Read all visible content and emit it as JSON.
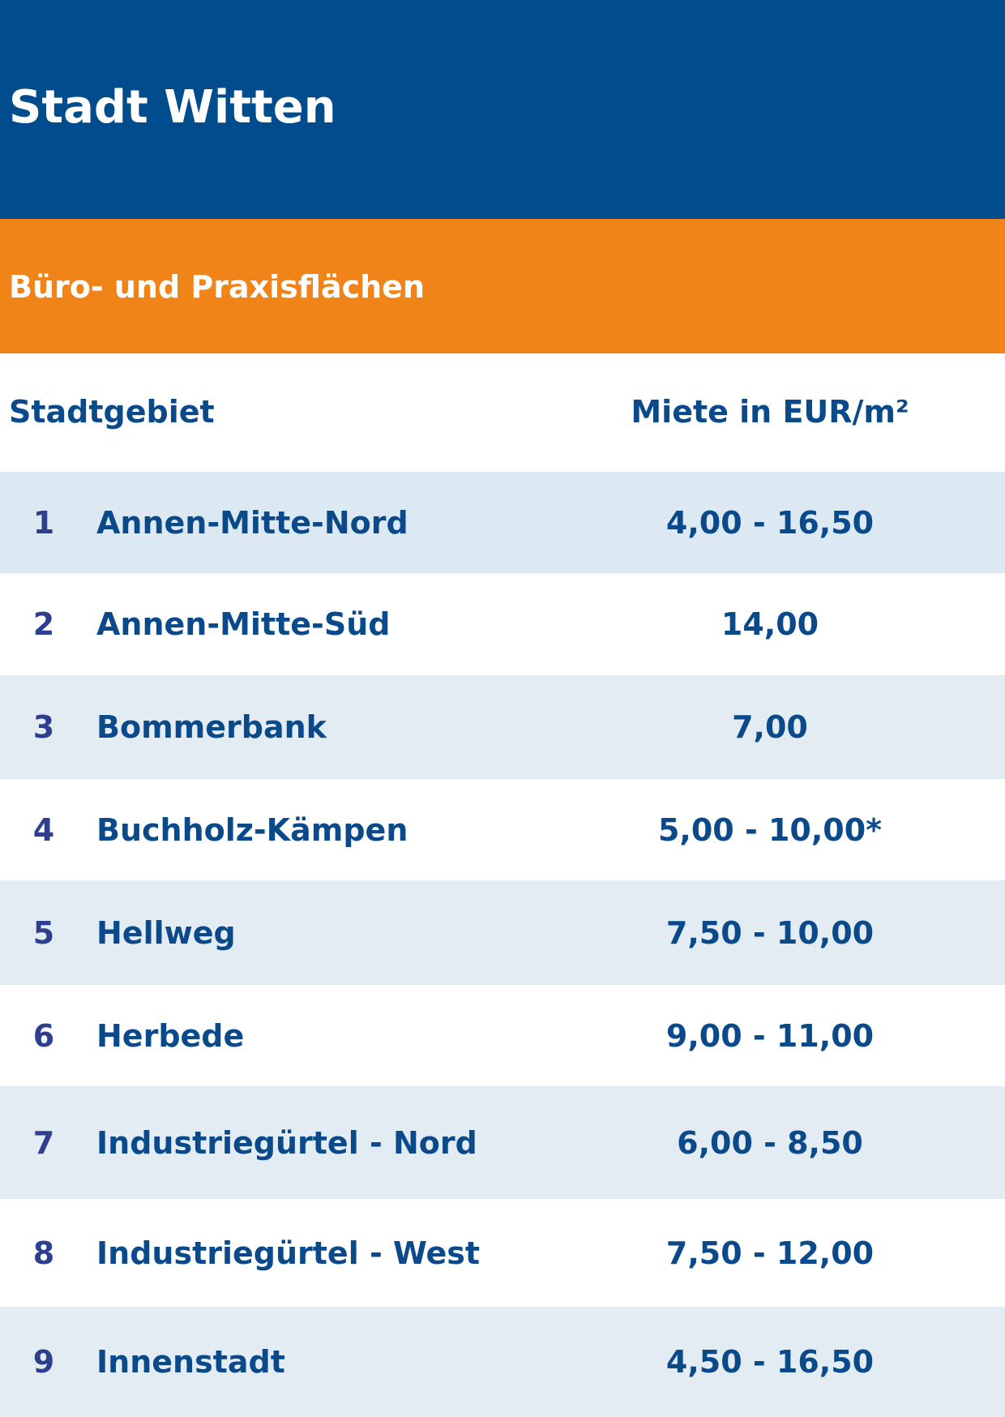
{
  "title": "Stadt Witten",
  "subtitle": "Büro- und Praxisflächen",
  "colors": {
    "title_band": "#004c8c",
    "subtitle_band": "#f08419",
    "text": "#0b4a8a",
    "row_shade": "#e3ebf3"
  },
  "table": {
    "headers": {
      "district": "Stadtgebiet",
      "rent": "Miete in EUR/m²"
    },
    "rows": [
      {
        "num": "1",
        "name": "Annen-Mitte-Nord",
        "rent": "4,00 - 16,50"
      },
      {
        "num": "2",
        "name": "Annen-Mitte-Süd",
        "rent": "14,00"
      },
      {
        "num": "3",
        "name": "Bommerbank",
        "rent": "7,00"
      },
      {
        "num": "4",
        "name": "Buchholz-Kämpen",
        "rent": "5,00 - 10,00*"
      },
      {
        "num": "5",
        "name": "Hellweg",
        "rent": "7,50 - 10,00"
      },
      {
        "num": "6",
        "name": "Herbede",
        "rent": "9,00 - 11,00"
      },
      {
        "num": "7",
        "name": "Industriegürtel - Nord",
        "rent": "6,00 - 8,50"
      },
      {
        "num": "8",
        "name": "Industriegürtel - West",
        "rent": "7,50 - 12,00"
      },
      {
        "num": "9",
        "name": "Innenstadt",
        "rent": "4,50 - 16,50"
      }
    ]
  }
}
